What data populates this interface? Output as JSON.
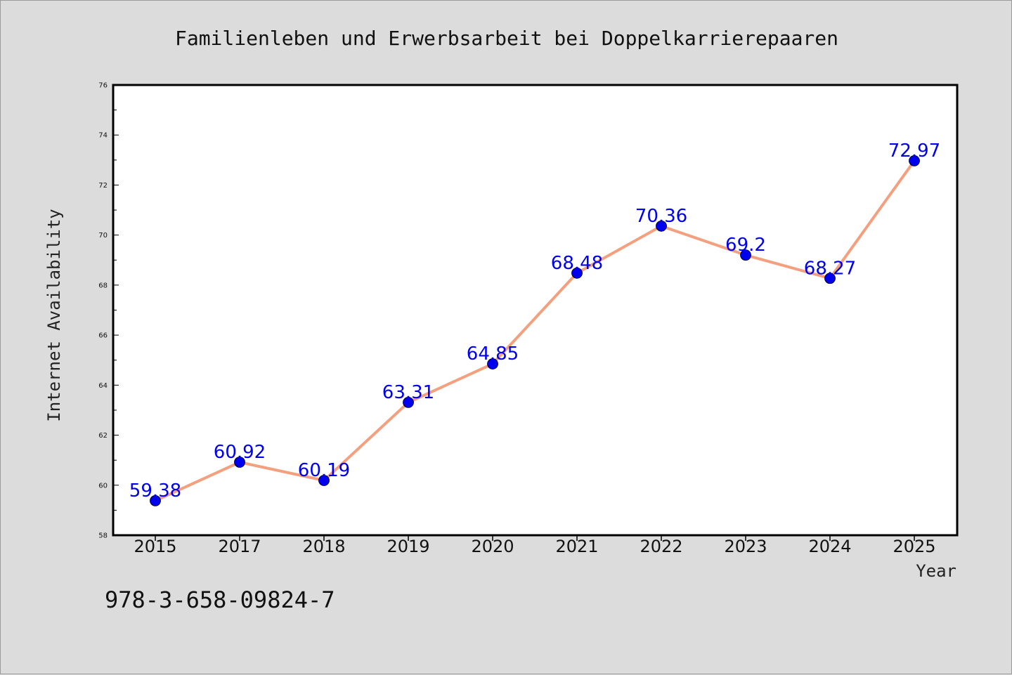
{
  "chart_data": {
    "type": "line",
    "title": "Familienleben und Erwerbsarbeit bei Doppelkarrierepaaren",
    "xlabel": "Year",
    "ylabel": "Internet Availability",
    "categories": [
      "2015",
      "2017",
      "2018",
      "2019",
      "2020",
      "2021",
      "2022",
      "2023",
      "2024",
      "2025"
    ],
    "series": [
      {
        "values": [
          59.38,
          60.92,
          60.19,
          63.31,
          64.85,
          68.48,
          70.36,
          69.2,
          68.27,
          72.97
        ],
        "data_labels": [
          "59.38",
          "60.92",
          "60.19",
          "63.31",
          "64.85",
          "68.48",
          "70.36",
          "69.2",
          "68.27",
          "72.97"
        ],
        "line_color": "#f4a07f",
        "marker_color": "#0000ee"
      }
    ],
    "ylim": [
      58,
      76
    ],
    "yticks": [
      "58",
      "60",
      "62",
      "64",
      "66",
      "68",
      "70",
      "72",
      "74",
      "76"
    ],
    "grid": false,
    "label_color": "#0000ee"
  },
  "annotation": "978-3-658-09824-7",
  "colors": {
    "background": "#dcdcdc",
    "plot_background": "#ffffff"
  }
}
